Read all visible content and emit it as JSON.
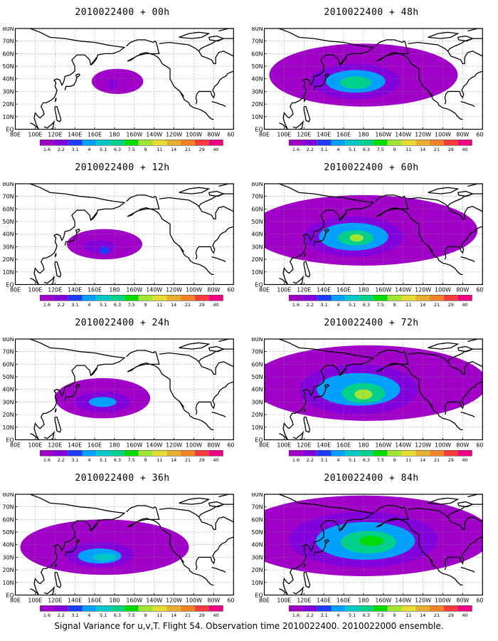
{
  "panels": [
    {
      "title": "2010022400 + 00h",
      "blobs": [
        {
          "lon": 183,
          "lat": 38,
          "rx": 26,
          "ry": 10,
          "level": 0
        },
        {
          "lon": 178,
          "lat": 36,
          "rx": 4,
          "ry": 4,
          "level": 1
        }
      ]
    },
    {
      "title": "2010022400 + 12h",
      "blobs": [
        {
          "lon": 170,
          "lat": 32,
          "rx": 38,
          "ry": 12,
          "level": 0
        },
        {
          "lon": 165,
          "lat": 30,
          "rx": 16,
          "ry": 5,
          "level": 1
        },
        {
          "lon": 170,
          "lat": 27,
          "rx": 5,
          "ry": 3,
          "level": 2
        }
      ]
    },
    {
      "title": "2010022400 + 24h",
      "blobs": [
        {
          "lon": 168,
          "lat": 33,
          "rx": 48,
          "ry": 16,
          "level": 0
        },
        {
          "lon": 168,
          "lat": 30,
          "rx": 28,
          "ry": 8,
          "level": 1
        },
        {
          "lon": 168,
          "lat": 30,
          "rx": 14,
          "ry": 4,
          "level": 3
        }
      ]
    },
    {
      "title": "2010022400 + 36h",
      "blobs": [
        {
          "lon": 170,
          "lat": 38,
          "rx": 85,
          "ry": 22,
          "level": 0
        },
        {
          "lon": 165,
          "lat": 32,
          "rx": 35,
          "ry": 10,
          "level": 1
        },
        {
          "lon": 165,
          "lat": 31,
          "rx": 22,
          "ry": 6,
          "level": 3
        },
        {
          "lon": 170,
          "lat": 30,
          "rx": 12,
          "ry": 3,
          "level": 4
        }
      ]
    },
    {
      "title": "2010022400 + 48h",
      "blobs": [
        {
          "lon": 180,
          "lat": 43,
          "rx": 95,
          "ry": 25,
          "level": 0
        },
        {
          "lon": 172,
          "lat": 38,
          "rx": 45,
          "ry": 14,
          "level": 1
        },
        {
          "lon": 172,
          "lat": 38,
          "rx": 30,
          "ry": 9,
          "level": 3
        },
        {
          "lon": 172,
          "lat": 37,
          "rx": 16,
          "ry": 5,
          "level": 5
        }
      ]
    },
    {
      "title": "2010022400 + 60h",
      "blobs": [
        {
          "lon": 180,
          "lat": 43,
          "rx": 115,
          "ry": 28,
          "level": 0
        },
        {
          "lon": 170,
          "lat": 38,
          "rx": 50,
          "ry": 16,
          "level": 1
        },
        {
          "lon": 170,
          "lat": 38,
          "rx": 35,
          "ry": 11,
          "level": 3
        },
        {
          "lon": 172,
          "lat": 37,
          "rx": 18,
          "ry": 6,
          "level": 5
        },
        {
          "lon": 173,
          "lat": 37,
          "rx": 7,
          "ry": 3,
          "level": 7
        }
      ]
    },
    {
      "title": "2010022400 + 72h",
      "blobs": [
        {
          "lon": 185,
          "lat": 45,
          "rx": 120,
          "ry": 30,
          "level": 0
        },
        {
          "lon": 175,
          "lat": 40,
          "rx": 60,
          "ry": 20,
          "level": 1
        },
        {
          "lon": 175,
          "lat": 40,
          "rx": 42,
          "ry": 13,
          "level": 3
        },
        {
          "lon": 180,
          "lat": 37,
          "rx": 22,
          "ry": 8,
          "level": 5
        },
        {
          "lon": 180,
          "lat": 36,
          "rx": 9,
          "ry": 4,
          "level": 7
        }
      ]
    },
    {
      "title": "2010022400 + 84h",
      "blobs": [
        {
          "lon": 180,
          "lat": 47,
          "rx": 130,
          "ry": 32,
          "level": 0
        },
        {
          "lon": 180,
          "lat": 44,
          "rx": 75,
          "ry": 22,
          "level": 1
        },
        {
          "lon": 182,
          "lat": 43,
          "rx": 50,
          "ry": 15,
          "level": 3
        },
        {
          "lon": 185,
          "lat": 42,
          "rx": 28,
          "ry": 9,
          "level": 5
        },
        {
          "lon": 188,
          "lat": 43,
          "rx": 12,
          "ry": 4,
          "level": 6
        }
      ]
    }
  ],
  "lon_ticks": [
    "80E",
    "100E",
    "120E",
    "140E",
    "160E",
    "180",
    "160W",
    "140W",
    "120W",
    "100W",
    "80W",
    "60W"
  ],
  "lat_ticks": [
    "EQ",
    "10N",
    "20N",
    "30N",
    "40N",
    "50N",
    "60N",
    "70N",
    "80N"
  ],
  "colorbar": {
    "labels": [
      "1.6",
      "2.2",
      "3.1",
      "4",
      "5.1",
      "6.3",
      "7.5",
      "9",
      "11",
      "14",
      "21",
      "29",
      "40"
    ],
    "colors": [
      "#a000c8",
      "#8200dc",
      "#1e3cff",
      "#00a0ff",
      "#00c8c8",
      "#00d28c",
      "#00dc00",
      "#a0e632",
      "#e6dc32",
      "#e6af2d",
      "#f08228",
      "#fa3c3c",
      "#f00082"
    ]
  },
  "caption": "Signal Variance for u,v,T. Flight 54. Observation time 2010022400. 2010022000 ensemble."
}
